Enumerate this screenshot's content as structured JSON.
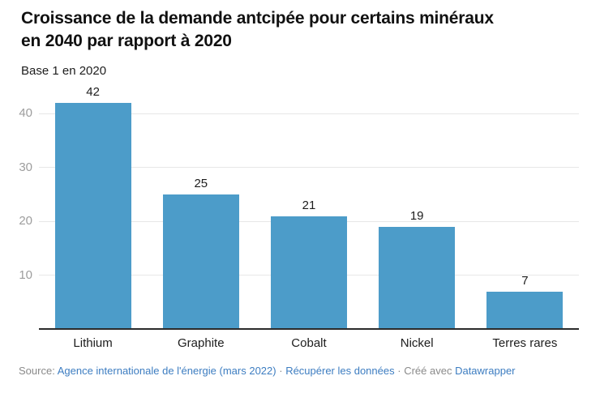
{
  "header": {
    "title_line1": "Croissance de la demande antcipée pour certains minéraux",
    "title_line2": "en 2040 par rapport à 2020",
    "subtitle": "Base 1 en 2020"
  },
  "chart_data": {
    "type": "bar",
    "title": "Croissance de la demande antcipée pour certains minéraux en 2040 par rapport à 2020",
    "subtitle": "Base 1 en 2020",
    "categories": [
      "Lithium",
      "Graphite",
      "Cobalt",
      "Nickel",
      "Terres rares"
    ],
    "values": [
      42,
      25,
      21,
      19,
      7
    ],
    "xlabel": "",
    "ylabel": "",
    "ylim": [
      0,
      46
    ],
    "yticks": [
      10,
      20,
      30,
      40
    ],
    "grid": true,
    "legend": false,
    "value_labels_shown": true,
    "bar_color": "#4c9cc9",
    "gridline_color": "#e7e7e7",
    "axis_label_color": "#9d9d9d",
    "baseline_color": "#2b2b2b",
    "value_label_color": "#1d1d1d"
  },
  "footer": {
    "source_prefix": "Source:",
    "source_link": "Agence internationale de l'énergie (mars 2022)",
    "separator": "·",
    "data_link": "Récupérer les données",
    "created_prefix": "Créé avec",
    "tool_link": "Datawrapper",
    "link_color": "#3d7dc1",
    "text_color": "#8a8a8a"
  }
}
